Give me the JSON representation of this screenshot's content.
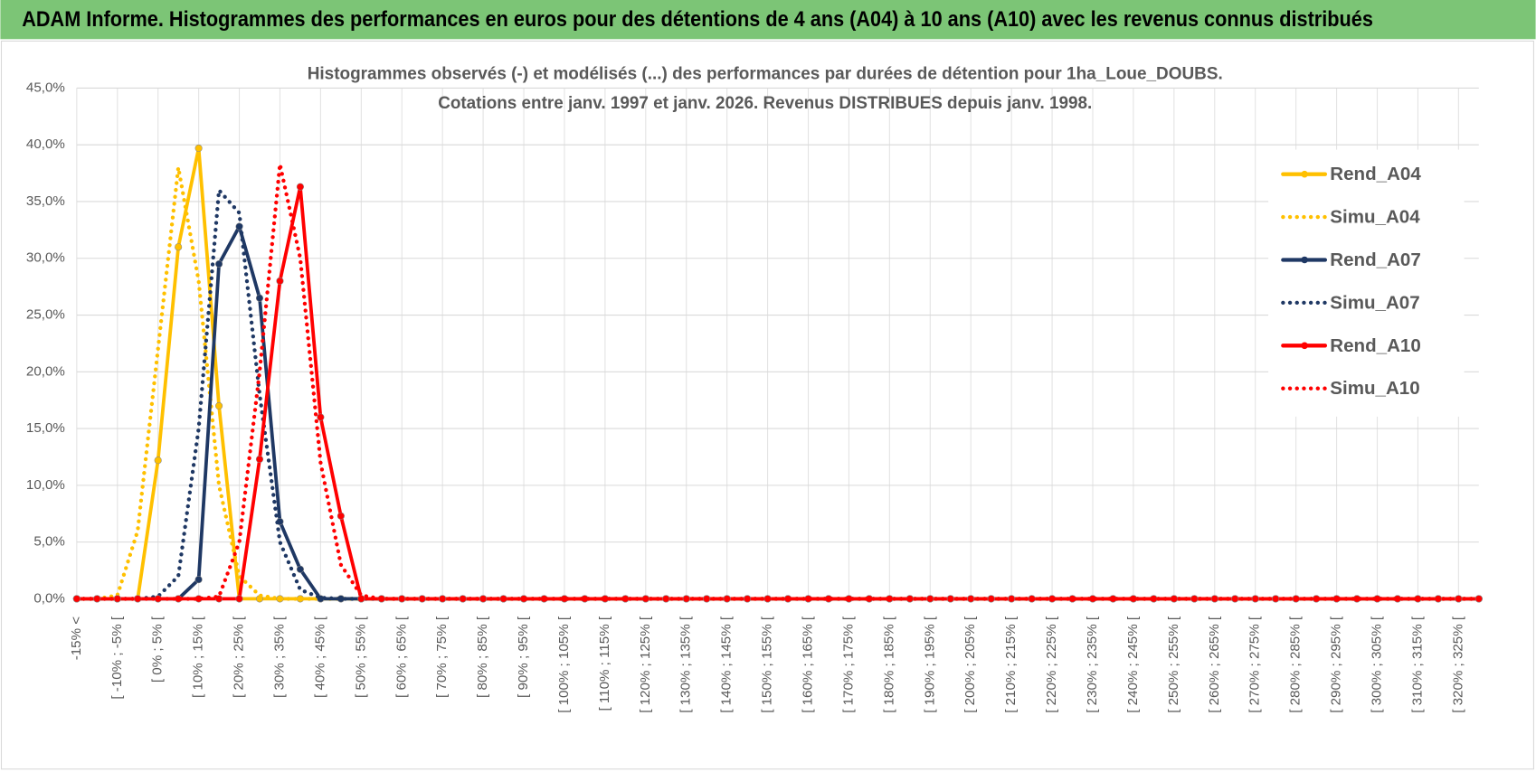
{
  "header": {
    "title": "ADAM Informe. Histogrammes des performances en euros pour des détentions de 4 ans (A04) à 10 ans (A10) avec les revenus connus distribués"
  },
  "chart_data": {
    "type": "line",
    "title": "Histogrammes observés (-) et modélisés (...) des performances par durées de détention pour 1ha_Loue_DOUBS.",
    "subtitle": "Cotations entre janv. 1997 et janv. 2026. Revenus DISTRIBUES depuis janv. 1998.",
    "categories": [
      "-15% <",
      null,
      "[ -10% ; -5% [",
      null,
      "[ 0% ; 5% [",
      null,
      "[ 10% ; 15% [",
      null,
      "[ 20% ; 25% [",
      null,
      "[ 30% ; 35% [",
      null,
      "[ 40% ; 45% [",
      null,
      "[ 50% ; 55% [",
      null,
      "[ 60% ; 65% [",
      null,
      "[ 70% ; 75% [",
      null,
      "[ 80% ; 85% [",
      null,
      "[ 90% ; 95% [",
      null,
      "[ 100% ; 105% [",
      null,
      "[ 110% ; 115% [",
      null,
      "[ 120% ; 125% [",
      null,
      "[ 130% ; 135% [",
      null,
      "[ 140% ; 145% [",
      null,
      "[ 150% ; 155% [",
      null,
      "[ 160% ; 165% [",
      null,
      "[ 170% ; 175% [",
      null,
      "[ 180% ; 185% [",
      null,
      "[ 190% ; 195% [",
      null,
      "[ 200% ; 205% [",
      null,
      "[ 210% ; 215% [",
      null,
      "[ 220% ; 225% [",
      null,
      "[ 230% ; 235% [",
      null,
      "[ 240% ; 245% [",
      null,
      "[ 250% ; 255% [",
      null,
      "[ 260% ; 265% [",
      null,
      "[ 270% ; 275% [",
      null,
      "[ 280% ; 285% [",
      null,
      "[ 290% ; 295% [",
      null,
      "[ 300% ; 305% [",
      null,
      "[ 310% ; 315% [",
      null,
      "[ 320% ; 325% [",
      null
    ],
    "series": [
      {
        "name": "Rend_A04",
        "color": "#ffc000",
        "style": "solid",
        "values": [
          0,
          0,
          0,
          0,
          12.2,
          31,
          39.7,
          17,
          0,
          0,
          0,
          0,
          0,
          0,
          0,
          0,
          0,
          0,
          0,
          0,
          0,
          0,
          0,
          0,
          0,
          0,
          0,
          0,
          0,
          0,
          0,
          0,
          0,
          0,
          0,
          0,
          0,
          0,
          0,
          0,
          0,
          0,
          0,
          0,
          0,
          0,
          0,
          0,
          0,
          0,
          0,
          0,
          0,
          0,
          0,
          0,
          0,
          0,
          0,
          0,
          0,
          0,
          0,
          0,
          0,
          0,
          0,
          0,
          0,
          0
        ]
      },
      {
        "name": "Simu_A04",
        "color": "#ffc000",
        "style": "dotted",
        "values": [
          0,
          0,
          0.3,
          6,
          22,
          38,
          28,
          10,
          2,
          0.3,
          0,
          0,
          0,
          0,
          0,
          0,
          0,
          0,
          0,
          0,
          0,
          0,
          0,
          0,
          0,
          0,
          0,
          0,
          0,
          0,
          0,
          0,
          0,
          0,
          0,
          0,
          0,
          0,
          0,
          0,
          0,
          0,
          0,
          0,
          0,
          0,
          0,
          0,
          0,
          0,
          0,
          0,
          0,
          0,
          0,
          0,
          0,
          0,
          0,
          0,
          0,
          0,
          0,
          0,
          0,
          0,
          0,
          0,
          0,
          0
        ]
      },
      {
        "name": "Rend_A07",
        "color": "#1f3864",
        "style": "solid",
        "values": [
          0,
          0,
          0,
          0,
          0,
          0,
          1.7,
          29.5,
          32.8,
          26.5,
          6.8,
          2.6,
          0,
          0,
          0,
          0,
          0,
          0,
          0,
          0,
          0,
          0,
          0,
          0,
          0,
          0,
          0,
          0,
          0,
          0,
          0,
          0,
          0,
          0,
          0,
          0,
          0,
          0,
          0,
          0,
          0,
          0,
          0,
          0,
          0,
          0,
          0,
          0,
          0,
          0,
          0,
          0,
          0,
          0,
          0,
          0,
          0,
          0,
          0,
          0,
          0,
          0,
          0,
          0,
          0,
          0,
          0,
          0,
          0,
          0
        ]
      },
      {
        "name": "Simu_A07",
        "color": "#1f3864",
        "style": "dotted",
        "values": [
          0,
          0,
          0,
          0,
          0.2,
          2,
          15,
          36,
          34,
          18,
          5,
          0.8,
          0.1,
          0,
          0,
          0,
          0,
          0,
          0,
          0,
          0,
          0,
          0,
          0,
          0,
          0,
          0,
          0,
          0,
          0,
          0,
          0,
          0,
          0,
          0,
          0,
          0,
          0,
          0,
          0,
          0,
          0,
          0,
          0,
          0,
          0,
          0,
          0,
          0,
          0,
          0,
          0,
          0,
          0,
          0,
          0,
          0,
          0,
          0,
          0,
          0,
          0,
          0,
          0,
          0,
          0,
          0,
          0,
          0,
          0
        ]
      },
      {
        "name": "Rend_A10",
        "color": "#ff0000",
        "style": "solid",
        "values": [
          0,
          0,
          0,
          0,
          0,
          0,
          0,
          0,
          0,
          12.3,
          28,
          36.3,
          16,
          7.3,
          0,
          0,
          0,
          0,
          0,
          0,
          0,
          0,
          0,
          0,
          0,
          0,
          0,
          0,
          0,
          0,
          0,
          0,
          0,
          0,
          0,
          0,
          0,
          0,
          0,
          0,
          0,
          0,
          0,
          0,
          0,
          0,
          0,
          0,
          0,
          0,
          0,
          0,
          0,
          0,
          0,
          0,
          0,
          0,
          0,
          0,
          0,
          0,
          0,
          0,
          0,
          0,
          0,
          0,
          0,
          0
        ]
      },
      {
        "name": "Simu_A10",
        "color": "#ff0000",
        "style": "dotted",
        "values": [
          0,
          0,
          0,
          0,
          0,
          0,
          0,
          0.2,
          5,
          20,
          38.3,
          30,
          12,
          3,
          0.3,
          0,
          0,
          0,
          0,
          0,
          0,
          0,
          0,
          0,
          0,
          0,
          0,
          0,
          0,
          0,
          0,
          0,
          0,
          0,
          0,
          0,
          0,
          0,
          0,
          0,
          0,
          0,
          0,
          0,
          0,
          0,
          0,
          0,
          0,
          0,
          0,
          0,
          0,
          0,
          0,
          0,
          0,
          0,
          0,
          0,
          0,
          0,
          0,
          0,
          0,
          0,
          0,
          0,
          0,
          0
        ]
      }
    ],
    "ylim": [
      0,
      45
    ],
    "yticks": [
      {
        "value": 0,
        "label": "0,0%"
      },
      {
        "value": 5,
        "label": "5,0%"
      },
      {
        "value": 10,
        "label": "10,0%"
      },
      {
        "value": 15,
        "label": "15,0%"
      },
      {
        "value": 20,
        "label": "20,0%"
      },
      {
        "value": 25,
        "label": "25,0%"
      },
      {
        "value": 30,
        "label": "30,0%"
      },
      {
        "value": 35,
        "label": "35,0%"
      },
      {
        "value": 40,
        "label": "40,0%"
      },
      {
        "value": 45,
        "label": "45,0%"
      }
    ],
    "grid": true,
    "legend": "right"
  }
}
